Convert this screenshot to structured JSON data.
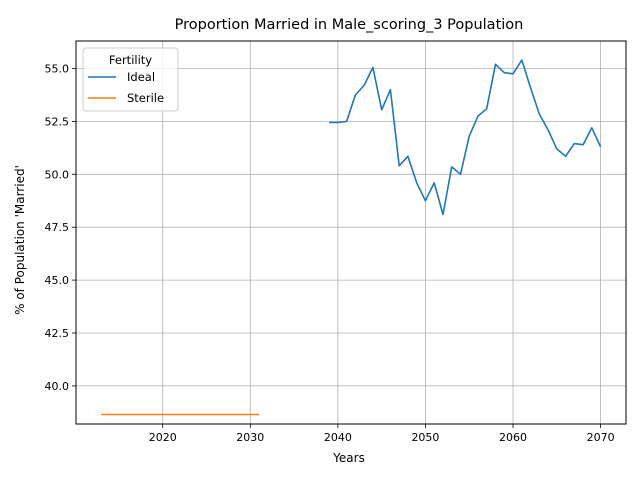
{
  "chart_data": {
    "type": "line",
    "title": "Proportion Married in Male_scoring_3 Population",
    "xlabel": "Years",
    "ylabel": "% of Population 'Married'",
    "xlim": [
      2010.1,
      2072.9
    ],
    "ylim": [
      38.2,
      56.3
    ],
    "x_ticks": [
      2020,
      2030,
      2040,
      2050,
      2060,
      2070
    ],
    "y_ticks": [
      40.0,
      42.5,
      45.0,
      47.5,
      50.0,
      52.5,
      55.0
    ],
    "x_tick_labels": [
      "2020",
      "2030",
      "2040",
      "2050",
      "2060",
      "2070"
    ],
    "y_tick_labels": [
      "40.0",
      "42.5",
      "45.0",
      "47.5",
      "50.0",
      "52.5",
      "55.0"
    ],
    "grid": true,
    "legend": {
      "title": "Fertility",
      "placement": "top-left"
    },
    "series": [
      {
        "name": "Ideal",
        "color": "#1f77b4",
        "x": [
          2039,
          2040,
          2041,
          2042,
          2043,
          2044,
          2045,
          2046,
          2047,
          2048,
          2049,
          2050,
          2051,
          2052,
          2053,
          2054,
          2055,
          2056,
          2057,
          2058,
          2059,
          2060,
          2061,
          2062,
          2063,
          2064,
          2065,
          2066,
          2067,
          2068,
          2069,
          2070
        ],
        "y": [
          52.45,
          52.45,
          52.5,
          53.75,
          54.2,
          55.05,
          53.05,
          54.0,
          50.4,
          50.85,
          49.6,
          48.75,
          49.6,
          48.1,
          50.35,
          50.0,
          51.8,
          52.75,
          53.1,
          55.2,
          54.8,
          54.75,
          55.4,
          54.1,
          52.85,
          52.1,
          51.2,
          50.85,
          51.45,
          51.4,
          52.2,
          51.3
        ]
      },
      {
        "name": "Sterile",
        "color": "#ff7f0e",
        "x": [
          2013,
          2014,
          2015,
          2016,
          2017,
          2018,
          2019,
          2020,
          2021,
          2022,
          2023,
          2024,
          2025,
          2026,
          2027,
          2028,
          2029,
          2030,
          2031
        ],
        "y": [
          38.65,
          38.65,
          38.65,
          38.65,
          38.65,
          38.65,
          38.65,
          38.65,
          38.65,
          38.65,
          38.65,
          38.65,
          38.65,
          38.65,
          38.65,
          38.65,
          38.65,
          38.65,
          38.65
        ]
      }
    ]
  }
}
